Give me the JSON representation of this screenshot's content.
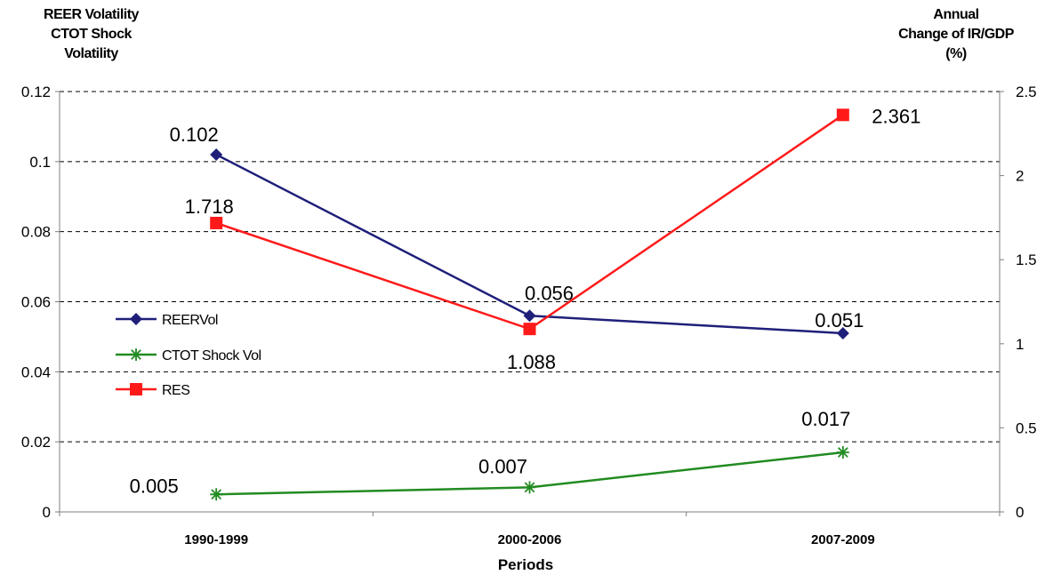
{
  "chart_data": {
    "type": "line",
    "categories": [
      "1990-1999",
      "2000-2006",
      "2007-2009"
    ],
    "xlabel": "Periods",
    "ylabel_left": [
      "REER Volatility",
      "CTOT Shock",
      "Volatility"
    ],
    "ylabel_right": [
      "Annual",
      "Change of IR/GDP",
      "(%)"
    ],
    "ylim_left": [
      0,
      0.12
    ],
    "yticks_left": [
      "0",
      "0.02",
      "0.04",
      "0.06",
      "0.08",
      "0.1",
      "0.12"
    ],
    "ylim_right": [
      0,
      2.5
    ],
    "yticks_right": [
      "0",
      "0.5",
      "1",
      "1.5",
      "2",
      "2.5"
    ],
    "grid": "horizontal dashed",
    "legend_position": "left-middle",
    "series": [
      {
        "name": "REERVol",
        "axis": "left",
        "color": "#1f1f7a",
        "marker": "diamond",
        "values": [
          0.102,
          0.056,
          0.051
        ],
        "labels": [
          "0.102",
          "0.056",
          "0.051"
        ]
      },
      {
        "name": "CTOT Shock Vol",
        "axis": "left",
        "color": "#228b22",
        "marker": "star",
        "values": [
          0.005,
          0.007,
          0.017
        ],
        "labels": [
          "0.005",
          "0.007",
          "0.017"
        ]
      },
      {
        "name": "RES",
        "axis": "right",
        "color": "#ff1a1a",
        "marker": "square",
        "values": [
          1.718,
          1.088,
          2.361
        ],
        "labels": [
          "1.718",
          "1.088",
          "2.361"
        ]
      }
    ]
  }
}
